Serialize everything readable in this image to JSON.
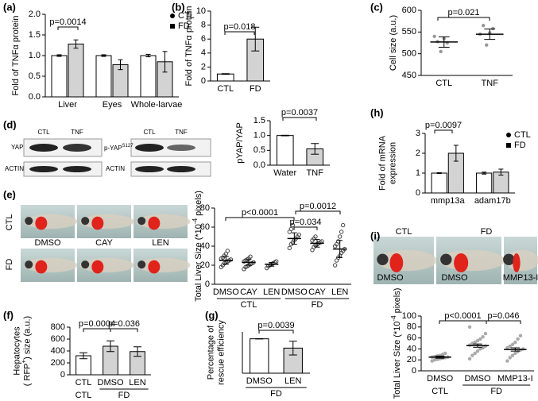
{
  "chart_data": [
    {
      "type": "bar",
      "panel": "(a)",
      "ylabel": [
        [
          "Fold of TNFα protein"
        ]
      ],
      "ylim": [
        0,
        2
      ],
      "yticks": [
        {
          "value": 0,
          "label": "0.0"
        },
        {
          "value": 0.5,
          "label": "0.5"
        },
        {
          "value": 1,
          "label": "1.0"
        },
        {
          "value": 1.5,
          "label": "1.5"
        },
        {
          "value": 2,
          "label": "2.0"
        }
      ],
      "categories": [
        "Liver",
        "Eyes",
        "Whole-larvae"
      ],
      "series": [
        {
          "name": "CTL",
          "color": "#ffffff",
          "values": [
            1.0,
            1.0,
            1.0
          ],
          "errors": [
            0.02,
            0.02,
            0.03
          ]
        },
        {
          "name": "FD",
          "color": "#d3d3d3",
          "values": [
            1.28,
            0.78,
            0.85
          ],
          "errors": [
            0.1,
            0.12,
            0.25
          ]
        }
      ],
      "annotations": [
        "p=0.0014"
      ],
      "legend": "upper right"
    },
    {
      "type": "bar",
      "panel": "(b)",
      "ylabel": [
        [
          "Fold of TNFα protein"
        ]
      ],
      "ylim": [
        0,
        10
      ],
      "yticks": [
        0,
        2,
        4,
        6,
        8,
        10
      ],
      "categories": [
        "CTL",
        "FD"
      ],
      "colors": [
        "#ffffff",
        "#d3d3d3"
      ],
      "values": [
        1.0,
        6.0
      ],
      "errors": [
        0.05,
        1.7
      ],
      "annotations": [
        "p=0.018"
      ]
    },
    {
      "type": "strip",
      "panel": "(c)",
      "ylabel": [
        [
          "Cell size (a.u.)"
        ]
      ],
      "ylim": [
        450,
        600
      ],
      "yticks": [
        450,
        500,
        550,
        600
      ],
      "categories": [
        "CTL",
        "TNF"
      ],
      "values": [
        527,
        545
      ],
      "errors": [
        12,
        12
      ],
      "points": [
        [
          540,
          528,
          505,
          535,
          525
        ],
        [
          545,
          565,
          520,
          548,
          558
        ]
      ],
      "color": "#999999",
      "annotations": [
        "p=0.021"
      ]
    },
    {
      "type": "bar",
      "panel": "(d)",
      "ylabel": [
        [
          "pYAP/YAP"
        ]
      ],
      "ylim": [
        0,
        1.5
      ],
      "yticks": [
        {
          "value": 0,
          "label": "0.0"
        },
        {
          "value": 0.5,
          "label": "0.5"
        },
        {
          "value": 1,
          "label": "1.0"
        },
        {
          "value": 1.5,
          "label": "1.5"
        }
      ],
      "categories": [
        "Water",
        "TNF"
      ],
      "colors": [
        "#ffffff",
        "#d3d3d3"
      ],
      "values": [
        1.0,
        0.55
      ],
      "errors": [
        0.01,
        0.18
      ],
      "annotations": [
        "p=0.0037"
      ]
    },
    {
      "type": "bar",
      "panel": "(h)",
      "ylabel": [
        [
          "Fold of mRNA"
        ],
        [
          "expression"
        ]
      ],
      "ylim": [
        0,
        3
      ],
      "yticks": [
        0,
        1,
        2,
        3
      ],
      "categories": [
        "mmp13a",
        "adam17b"
      ],
      "series": [
        {
          "name": "CTL",
          "color": "#ffffff",
          "values": [
            1.0,
            1.0
          ],
          "errors": [
            0.02,
            0.05
          ]
        },
        {
          "name": "FD",
          "color": "#d3d3d3",
          "values": [
            2.0,
            1.05
          ],
          "errors": [
            0.4,
            0.15
          ]
        }
      ],
      "annotations": [
        "p=0.0097"
      ],
      "legend": "upper right"
    },
    {
      "type": "strip",
      "panel": "(e)",
      "ylabel": [
        [
          "Total Liver Size (*10",
          "-4",
          " pixels)"
        ]
      ],
      "ylim": [
        0,
        80
      ],
      "yticks": [
        0,
        20,
        40,
        60,
        80
      ],
      "categories": [
        "DMSO",
        "CAY",
        "LEN",
        "DMSO",
        "CAY",
        "LEN"
      ],
      "groups": [
        "CTL",
        "FD"
      ],
      "values": [
        25,
        23,
        21,
        48,
        43,
        37
      ],
      "errors": [
        4,
        3,
        2,
        6,
        4,
        9
      ],
      "color": "#444444",
      "points": [
        [
          18,
          20,
          22,
          23,
          24,
          25,
          26,
          27,
          28,
          30,
          32,
          35
        ],
        [
          16,
          18,
          19,
          20,
          21,
          22,
          23,
          24,
          25,
          26,
          27,
          29
        ],
        [
          17,
          19,
          20,
          21,
          22,
          23,
          24
        ],
        [
          38,
          42,
          44,
          46,
          48,
          50,
          52,
          55,
          58,
          62
        ],
        [
          36,
          39,
          41,
          42,
          43,
          44,
          45,
          46,
          48,
          50
        ],
        [
          20,
          25,
          28,
          30,
          33,
          35,
          37,
          40,
          42,
          45,
          50,
          55,
          62
        ]
      ],
      "annotations": [
        "p<0.0001",
        "p=0.034",
        "p=0.0012"
      ]
    },
    {
      "type": "bar",
      "panel": "(f)",
      "ylabel": [
        [
          "Hepatocytes"
        ],
        [
          "( RFP",
          "+",
          ") size (a.u.)"
        ]
      ],
      "ylim": [
        0,
        800
      ],
      "yticks": [
        0,
        200,
        400,
        600,
        800
      ],
      "categories": [
        "CTL",
        "DMSO",
        "LEN"
      ],
      "groups": [
        "CTL",
        "FD"
      ],
      "colors": [
        "#ffffff",
        "#d3d3d3",
        "#d3d3d3"
      ],
      "values": [
        320,
        480,
        390
      ],
      "errors": [
        50,
        90,
        80
      ],
      "annotations": [
        "p=0.0004",
        "p=0.036"
      ]
    },
    {
      "type": "bar",
      "panel": "(g)",
      "ylabel": [
        [
          "Percentage of"
        ],
        [
          "rescue efficiency"
        ]
      ],
      "ylim": [
        0,
        120
      ],
      "categories": [
        "DMSO",
        "LEN"
      ],
      "groups": [
        "FD"
      ],
      "colors": [
        "#ffffff",
        "#d3d3d3"
      ],
      "values": [
        100,
        73
      ],
      "errors": [
        0.5,
        20
      ],
      "annotations": [
        "p=0.0039"
      ]
    },
    {
      "type": "strip",
      "panel": "(i)",
      "ylabel": [
        [
          "Total Liver Size (*10",
          "-4",
          " pixels)"
        ]
      ],
      "ylim": [
        0,
        100
      ],
      "yticks": [
        0,
        20,
        40,
        60,
        80,
        100
      ],
      "categories": [
        "DMSO",
        "DMSO",
        "MMP13-I"
      ],
      "groups": [
        "CTL",
        "FD"
      ],
      "values": [
        25,
        46,
        39
      ],
      "errors": [
        2,
        3,
        3
      ],
      "color": "#aaaaaa",
      "points": [
        [
          18,
          20,
          21,
          22,
          23,
          24,
          25,
          25,
          26,
          27,
          28,
          30,
          32
        ],
        [
          22,
          28,
          32,
          36,
          40,
          42,
          45,
          47,
          50,
          52,
          55,
          58,
          62,
          68,
          80
        ],
        [
          18,
          24,
          28,
          32,
          35,
          38,
          40,
          42,
          45,
          48,
          52,
          58,
          64
        ]
      ],
      "annotations": [
        "p<0.0001",
        "p=0.046"
      ]
    }
  ],
  "blot_d": {
    "lanes": [
      "CTL",
      "TNF",
      "CTL",
      "TNF"
    ],
    "left_rows": [
      "YAP",
      "ACTIN"
    ],
    "right_rows": [
      "p-YAP",
      "ACTIN"
    ],
    "right_sup": "S127"
  },
  "images_e": {
    "rows": [
      "CTL",
      "FD"
    ],
    "cols": [
      "DMSO",
      "CAY",
      "LEN"
    ]
  },
  "images_i": {
    "groups": [
      "CTL",
      "FD"
    ],
    "labels": [
      "DMSO",
      "DMSO",
      "MMP13-I"
    ]
  }
}
